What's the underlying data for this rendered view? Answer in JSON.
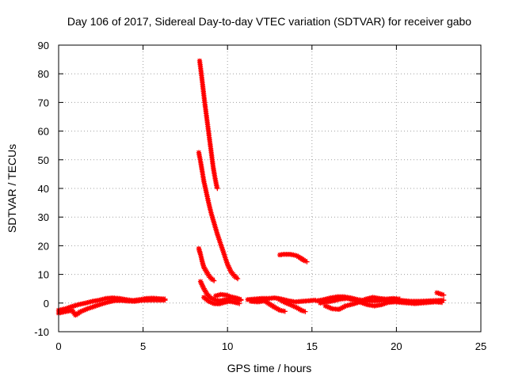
{
  "chart_data": {
    "type": "scatter",
    "title": "Day 106 of 2017, Sidereal Day-to-day VTEC variation (SDTVAR) for receiver gabo",
    "xlabel": "GPS time / hours",
    "ylabel": "SDTVAR / TECUs",
    "xlim": [
      0,
      25
    ],
    "ylim": [
      -10,
      90
    ],
    "xticks": [
      0,
      5,
      10,
      15,
      20,
      25
    ],
    "yticks": [
      -10,
      0,
      10,
      20,
      30,
      40,
      50,
      60,
      70,
      80,
      90
    ],
    "grid": true,
    "legend": "none",
    "marker": "plus-cross",
    "series": [
      {
        "name": "SDTVAR",
        "color": "#ff0000",
        "tracks": [
          [
            [
              0.0,
              -2.5
            ],
            [
              0.4,
              -2.0
            ],
            [
              0.8,
              -1.2
            ],
            [
              1.2,
              -0.5
            ],
            [
              1.6,
              0.0
            ],
            [
              2.0,
              0.6
            ],
            [
              2.4,
              1.0
            ],
            [
              2.8,
              1.6
            ],
            [
              3.2,
              1.8
            ],
            [
              3.6,
              1.6
            ],
            [
              4.0,
              1.2
            ],
            [
              4.4,
              0.9
            ],
            [
              4.8,
              1.2
            ],
            [
              5.2,
              1.6
            ],
            [
              5.6,
              1.7
            ],
            [
              6.0,
              1.5
            ],
            [
              6.3,
              1.4
            ]
          ],
          [
            [
              0.0,
              -3.5
            ],
            [
              0.4,
              -3.0
            ],
            [
              0.8,
              -2.6
            ],
            [
              1.0,
              -4.2
            ],
            [
              1.3,
              -3.0
            ],
            [
              1.7,
              -2.0
            ],
            [
              2.1,
              -1.2
            ],
            [
              2.5,
              -0.4
            ],
            [
              2.9,
              0.3
            ],
            [
              3.3,
              0.8
            ],
            [
              3.7,
              0.9
            ],
            [
              4.1,
              0.7
            ],
            [
              4.5,
              0.6
            ],
            [
              4.9,
              0.9
            ],
            [
              5.3,
              1.0
            ],
            [
              5.8,
              1.0
            ],
            [
              6.3,
              1.0
            ]
          ],
          [
            [
              8.35,
              84.5
            ],
            [
              8.45,
              80.0
            ],
            [
              8.55,
              75.0
            ],
            [
              8.65,
              70.0
            ],
            [
              8.75,
              65.5
            ],
            [
              8.85,
              61.0
            ],
            [
              8.95,
              56.5
            ],
            [
              9.05,
              52.0
            ],
            [
              9.15,
              47.5
            ],
            [
              9.25,
              44.0
            ],
            [
              9.35,
              41.0
            ],
            [
              9.4,
              40.0
            ]
          ],
          [
            [
              8.3,
              52.5
            ],
            [
              8.4,
              49.5
            ],
            [
              8.5,
              46.0
            ],
            [
              8.6,
              42.5
            ],
            [
              8.75,
              38.5
            ],
            [
              8.9,
              34.5
            ],
            [
              9.05,
              31.0
            ],
            [
              9.2,
              28.0
            ],
            [
              9.4,
              24.0
            ],
            [
              9.6,
              20.5
            ],
            [
              9.8,
              17.0
            ],
            [
              10.0,
              13.5
            ],
            [
              10.2,
              11.0
            ],
            [
              10.4,
              9.5
            ],
            [
              10.6,
              8.5
            ]
          ],
          [
            [
              8.3,
              19.0
            ],
            [
              8.4,
              17.0
            ],
            [
              8.5,
              14.5
            ],
            [
              8.6,
              12.5
            ],
            [
              8.75,
              11.0
            ],
            [
              8.9,
              9.5
            ],
            [
              9.05,
              8.5
            ],
            [
              9.2,
              7.8
            ]
          ],
          [
            [
              8.4,
              7.5
            ],
            [
              8.6,
              5.0
            ],
            [
              8.8,
              3.0
            ],
            [
              9.0,
              1.8
            ],
            [
              9.3,
              1.0
            ],
            [
              9.6,
              0.8
            ],
            [
              9.9,
              1.2
            ],
            [
              10.2,
              1.8
            ],
            [
              10.5,
              1.4
            ],
            [
              10.8,
              1.0
            ]
          ],
          [
            [
              8.6,
              2.0
            ],
            [
              8.9,
              0.6
            ],
            [
              9.2,
              -0.2
            ],
            [
              9.5,
              -0.3
            ],
            [
              9.8,
              0.2
            ],
            [
              10.1,
              0.6
            ],
            [
              10.4,
              0.3
            ],
            [
              10.7,
              -0.2
            ]
          ],
          [
            [
              9.3,
              2.5
            ],
            [
              9.6,
              3.0
            ],
            [
              9.9,
              2.8
            ],
            [
              10.2,
              2.2
            ],
            [
              10.5,
              1.8
            ],
            [
              10.8,
              1.2
            ]
          ],
          [
            [
              11.2,
              1.2
            ],
            [
              11.6,
              1.4
            ],
            [
              12.0,
              1.6
            ],
            [
              12.4,
              1.6
            ],
            [
              12.8,
              1.8
            ],
            [
              13.2,
              1.4
            ],
            [
              13.6,
              0.8
            ],
            [
              14.0,
              0.4
            ],
            [
              14.4,
              0.6
            ],
            [
              14.8,
              0.8
            ],
            [
              15.2,
              1.0
            ]
          ],
          [
            [
              11.4,
              0.6
            ],
            [
              11.8,
              0.4
            ],
            [
              12.2,
              0.8
            ],
            [
              12.5,
              -0.4
            ],
            [
              12.8,
              -1.5
            ],
            [
              13.1,
              -2.5
            ],
            [
              13.4,
              -2.9
            ]
          ],
          [
            [
              13.0,
              1.5
            ],
            [
              13.4,
              0.2
            ],
            [
              13.8,
              -0.8
            ],
            [
              14.1,
              -1.6
            ],
            [
              14.4,
              -2.6
            ],
            [
              14.6,
              -3.0
            ]
          ],
          [
            [
              13.1,
              16.8
            ],
            [
              13.3,
              17.0
            ],
            [
              13.5,
              17.0
            ],
            [
              13.7,
              17.0
            ],
            [
              13.9,
              16.8
            ],
            [
              14.1,
              16.5
            ],
            [
              14.3,
              15.8
            ],
            [
              14.5,
              15.0
            ],
            [
              14.7,
              14.4
            ]
          ],
          [
            [
              15.3,
              0.8
            ],
            [
              15.7,
              1.2
            ],
            [
              16.1,
              1.8
            ],
            [
              16.5,
              2.2
            ],
            [
              16.9,
              2.2
            ],
            [
              17.3,
              1.8
            ],
            [
              17.7,
              1.2
            ],
            [
              18.1,
              0.9
            ],
            [
              18.5,
              0.7
            ],
            [
              18.9,
              0.8
            ],
            [
              19.3,
              1.0
            ],
            [
              19.7,
              1.1
            ],
            [
              20.1,
              1.0
            ],
            [
              20.5,
              0.8
            ],
            [
              20.9,
              0.6
            ],
            [
              21.3,
              0.6
            ],
            [
              21.7,
              0.7
            ],
            [
              22.1,
              0.8
            ],
            [
              22.5,
              0.9
            ],
            [
              22.8,
              1.0
            ]
          ],
          [
            [
              15.5,
              0.0
            ],
            [
              15.9,
              0.4
            ],
            [
              16.3,
              0.8
            ],
            [
              16.7,
              1.4
            ],
            [
              17.1,
              1.6
            ],
            [
              17.5,
              1.0
            ],
            [
              17.9,
              0.2
            ],
            [
              18.3,
              -0.6
            ],
            [
              18.7,
              -1.0
            ],
            [
              19.1,
              -0.6
            ],
            [
              19.5,
              0.2
            ],
            [
              19.9,
              0.4
            ],
            [
              20.3,
              0.2
            ],
            [
              20.7,
              0.0
            ],
            [
              21.1,
              -0.2
            ],
            [
              21.5,
              0.0
            ],
            [
              21.9,
              0.2
            ],
            [
              22.3,
              0.4
            ],
            [
              22.7,
              0.2
            ]
          ],
          [
            [
              15.8,
              -1.0
            ],
            [
              16.2,
              -2.0
            ],
            [
              16.6,
              -2.2
            ],
            [
              17.0,
              -1.0
            ],
            [
              17.4,
              -0.4
            ],
            [
              17.8,
              0.3
            ],
            [
              18.2,
              1.4
            ],
            [
              18.6,
              2.0
            ],
            [
              19.0,
              1.6
            ],
            [
              19.4,
              1.4
            ],
            [
              19.8,
              1.6
            ],
            [
              20.2,
              1.4
            ]
          ],
          [
            [
              22.4,
              3.6
            ],
            [
              22.6,
              3.2
            ],
            [
              22.8,
              2.8
            ]
          ]
        ]
      }
    ]
  }
}
